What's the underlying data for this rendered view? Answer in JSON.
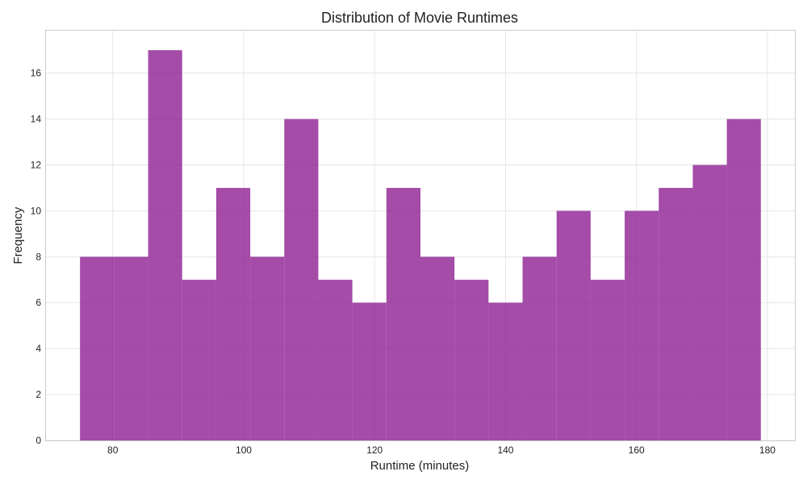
{
  "chart_data": {
    "type": "bar",
    "title": "Distribution of Movie Runtimes",
    "xlabel": "Runtime (minutes)",
    "ylabel": "Frequency",
    "bin_edges": [
      75,
      80.2,
      85.4,
      90.6,
      95.8,
      101,
      106.2,
      111.4,
      116.6,
      121.8,
      127,
      132.2,
      137.4,
      142.6,
      147.8,
      153,
      158.2,
      163.4,
      168.6,
      173.8,
      179
    ],
    "values": [
      8,
      8,
      17,
      7,
      11,
      8,
      14,
      7,
      6,
      11,
      8,
      7,
      6,
      8,
      10,
      7,
      10,
      11,
      12,
      14
    ],
    "xlim": [
      69.8,
      184.2
    ],
    "ylim": [
      0,
      17.85
    ],
    "xticks": [
      80,
      100,
      120,
      140,
      160,
      180
    ],
    "yticks": [
      0,
      2,
      4,
      6,
      8,
      10,
      12,
      14,
      16
    ],
    "grid": true,
    "bar_color": "#8B1A8F"
  }
}
